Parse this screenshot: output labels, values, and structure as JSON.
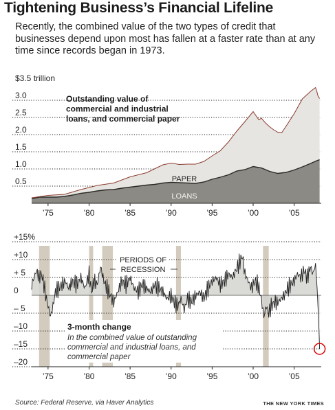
{
  "header": {
    "title": "Tightening Business’s Financial Lifeline",
    "dek": "Recently, the combined value of the two types of credit that businesses depend upon most has fallen at a faster rate than at any time since records began in 1973."
  },
  "footer": {
    "source": "Source: Federal Reserve, via Haver Analytics",
    "credit": "THE NEW YORK TIMES"
  },
  "colors": {
    "loans_fill": "#8c8a84",
    "paper_fill": "#e6e5e1",
    "total_line": "#8b3a2c",
    "recession_band": "#d3cbbd",
    "negative_fill": "#d4d4d0",
    "highlight_circle": "#d60000"
  },
  "chart_data": [
    {
      "type": "area",
      "title": "",
      "ylabel": "$3.5 trillion",
      "y_ticks": [
        {
          "value": 0.5,
          "label": "0.5"
        },
        {
          "value": 1.0,
          "label": "1.0"
        },
        {
          "value": 1.5,
          "label": "1.5"
        },
        {
          "value": 2.0,
          "label": "2.0"
        },
        {
          "value": 2.5,
          "label": "2.5"
        },
        {
          "value": 3.0,
          "label": "3.0"
        },
        {
          "value": 3.5,
          "label": "$3.5 trillion"
        }
      ],
      "x_ticks": [
        {
          "value": 1975,
          "label": "’75"
        },
        {
          "value": 1980,
          "label": "’80"
        },
        {
          "value": 1985,
          "label": "’85"
        },
        {
          "value": 1990,
          "label": "’90"
        },
        {
          "value": 1995,
          "label": "’95"
        },
        {
          "value": 2000,
          "label": "’00"
        },
        {
          "value": 2005,
          "label": "’05"
        }
      ],
      "xlim": [
        1973,
        2008.3
      ],
      "ylim": [
        0,
        3.5
      ],
      "annotation": "Outstanding value of commercial and industrial loans, and commercial paper",
      "series": [
        {
          "name": "LOANS",
          "x": [
            1973,
            1974,
            1975,
            1976,
            1977,
            1978,
            1979,
            1980,
            1981,
            1982,
            1983,
            1984,
            1985,
            1986,
            1987,
            1988,
            1989,
            1990,
            1991,
            1992,
            1993,
            1994,
            1995,
            1996,
            1997,
            1998,
            1999,
            2000,
            2001,
            2002,
            2003,
            2004,
            2005,
            2006,
            2007,
            2007.75,
            2008.1
          ],
          "values": [
            0.13,
            0.18,
            0.18,
            0.18,
            0.2,
            0.24,
            0.29,
            0.32,
            0.36,
            0.39,
            0.4,
            0.44,
            0.47,
            0.5,
            0.53,
            0.55,
            0.59,
            0.61,
            0.6,
            0.59,
            0.58,
            0.62,
            0.7,
            0.76,
            0.83,
            0.94,
            0.98,
            1.07,
            1.03,
            0.93,
            0.87,
            0.9,
            0.97,
            1.06,
            1.16,
            1.24,
            1.27
          ]
        },
        {
          "name": "PAPER",
          "x": [
            1973,
            1974,
            1975,
            1976,
            1977,
            1978,
            1979,
            1980,
            1981,
            1982,
            1983,
            1984,
            1985,
            1986,
            1987,
            1988,
            1989,
            1990,
            1991,
            1992,
            1993,
            1994,
            1995,
            1996,
            1997,
            1998,
            1999,
            2000,
            2001,
            2002,
            2003,
            2004,
            2005,
            2006,
            2007,
            2007.75,
            2008.1
          ],
          "values": [
            0.03,
            0.04,
            0.05,
            0.05,
            0.06,
            0.08,
            0.11,
            0.12,
            0.16,
            0.17,
            0.19,
            0.23,
            0.3,
            0.33,
            0.36,
            0.45,
            0.53,
            0.56,
            0.53,
            0.55,
            0.56,
            0.6,
            0.68,
            0.77,
            0.96,
            1.16,
            1.4,
            1.6,
            1.45,
            1.3,
            1.2,
            1.34,
            1.64,
            1.98,
            2.1,
            2.03,
            1.78
          ]
        }
      ],
      "total_line": {
        "x": [
          1973,
          1975,
          1977,
          1979,
          1981,
          1983,
          1985,
          1987,
          1989,
          1990,
          1991,
          1992,
          1993,
          1994,
          1995,
          1996,
          1997,
          1998,
          1999,
          2000,
          2000.7,
          2001,
          2001.5,
          2002,
          2002.5,
          2003,
          2003.5,
          2004,
          2005,
          2006,
          2007,
          2007.6,
          2007.75,
          2007.9,
          2008.1
        ],
        "values": [
          0.16,
          0.23,
          0.26,
          0.4,
          0.52,
          0.59,
          0.77,
          0.89,
          1.12,
          1.17,
          1.13,
          1.14,
          1.14,
          1.22,
          1.38,
          1.53,
          1.79,
          2.1,
          2.38,
          2.67,
          2.43,
          2.48,
          2.34,
          2.23,
          2.14,
          2.07,
          2.06,
          2.24,
          2.61,
          3.04,
          3.26,
          3.37,
          3.27,
          3.13,
          3.05
        ]
      }
    },
    {
      "type": "line",
      "title": "",
      "ylabel": "",
      "xlim": [
        1973,
        2008.3
      ],
      "ylim": [
        -20,
        15
      ],
      "y_ticks": [
        {
          "value": 15,
          "label": "+15%"
        },
        {
          "value": 10,
          "label": "+10"
        },
        {
          "value": 5,
          "label": "+ 5"
        },
        {
          "value": 0,
          "label": "0"
        },
        {
          "value": -5,
          "label": "– 5"
        },
        {
          "value": -10,
          "label": "–10"
        },
        {
          "value": -15,
          "label": "–15"
        },
        {
          "value": -20,
          "label": "–20"
        }
      ],
      "x_ticks": [
        {
          "value": 1975,
          "label": "’75"
        },
        {
          "value": 1980,
          "label": "’80"
        },
        {
          "value": 1985,
          "label": "’85"
        },
        {
          "value": 1990,
          "label": "’90"
        },
        {
          "value": 1995,
          "label": "’95"
        },
        {
          "value": 2000,
          "label": "’00"
        },
        {
          "value": 2005,
          "label": "’05"
        }
      ],
      "recessions_label": "PERIODS OF RECESSION",
      "recessions": [
        [
          1973.9,
          1975.2
        ],
        [
          1980.0,
          1980.5
        ],
        [
          1981.6,
          1982.9
        ],
        [
          1990.6,
          1991.2
        ],
        [
          2001.2,
          2001.9
        ]
      ],
      "annotation_title": "3-month change",
      "annotation_text": "In the combined value of outstanding commercial and industrial loans, and commercial paper",
      "series": [
        {
          "name": "3-month change",
          "x": [
            1973,
            1973.3,
            1973.6,
            1973.9,
            1974.2,
            1974.5,
            1974.8,
            1975.1,
            1975.3,
            1975.6,
            1975.9,
            1976.3,
            1976.7,
            1977.1,
            1977.5,
            1978,
            1978.5,
            1979,
            1979.5,
            1980,
            1980.3,
            1980.6,
            1981,
            1981.4,
            1981.8,
            1982.2,
            1982.6,
            1983,
            1983.5,
            1984,
            1984.5,
            1985,
            1985.5,
            1986,
            1986.5,
            1987,
            1987.5,
            1988,
            1988.5,
            1989,
            1989.5,
            1990,
            1990.4,
            1990.8,
            1991.2,
            1991.6,
            1992,
            1992.5,
            1993,
            1993.5,
            1994,
            1994.5,
            1995,
            1995.5,
            1996,
            1996.5,
            1997,
            1997.5,
            1997.9,
            1998.3,
            1998.7,
            1999,
            1999.4,
            1999.8,
            2000.2,
            2000.6,
            2001,
            2001.3,
            2001.6,
            2001.9,
            2002.2,
            2002.6,
            2003,
            2003.4,
            2003.8,
            2004.2,
            2004.6,
            2005,
            2005.4,
            2005.8,
            2006.2,
            2006.6,
            2007,
            2007.3,
            2007.6,
            2007.8,
            2008.0,
            2008.1
          ],
          "values": [
            3,
            5,
            7,
            5,
            6,
            3,
            -1,
            -4,
            -6,
            -3,
            1,
            2,
            3,
            4,
            2,
            4,
            3,
            5,
            2,
            6,
            1,
            4,
            3,
            8,
            4,
            2,
            0,
            -2,
            1,
            4,
            3,
            5,
            2,
            1,
            3,
            2,
            1,
            3,
            2,
            1,
            -1,
            0,
            -2,
            -3,
            -1,
            -4,
            -1,
            -2,
            0,
            1,
            -1,
            2,
            4,
            5,
            3,
            4,
            6,
            5,
            7,
            9,
            11,
            6,
            4,
            2,
            4,
            3,
            -1,
            -6,
            -3,
            -5,
            -3,
            -2,
            -2,
            -1,
            0,
            2,
            3,
            4,
            6,
            5,
            7,
            5,
            8,
            6,
            9,
            2,
            -8,
            -15
          ]
        }
      ]
    }
  ]
}
